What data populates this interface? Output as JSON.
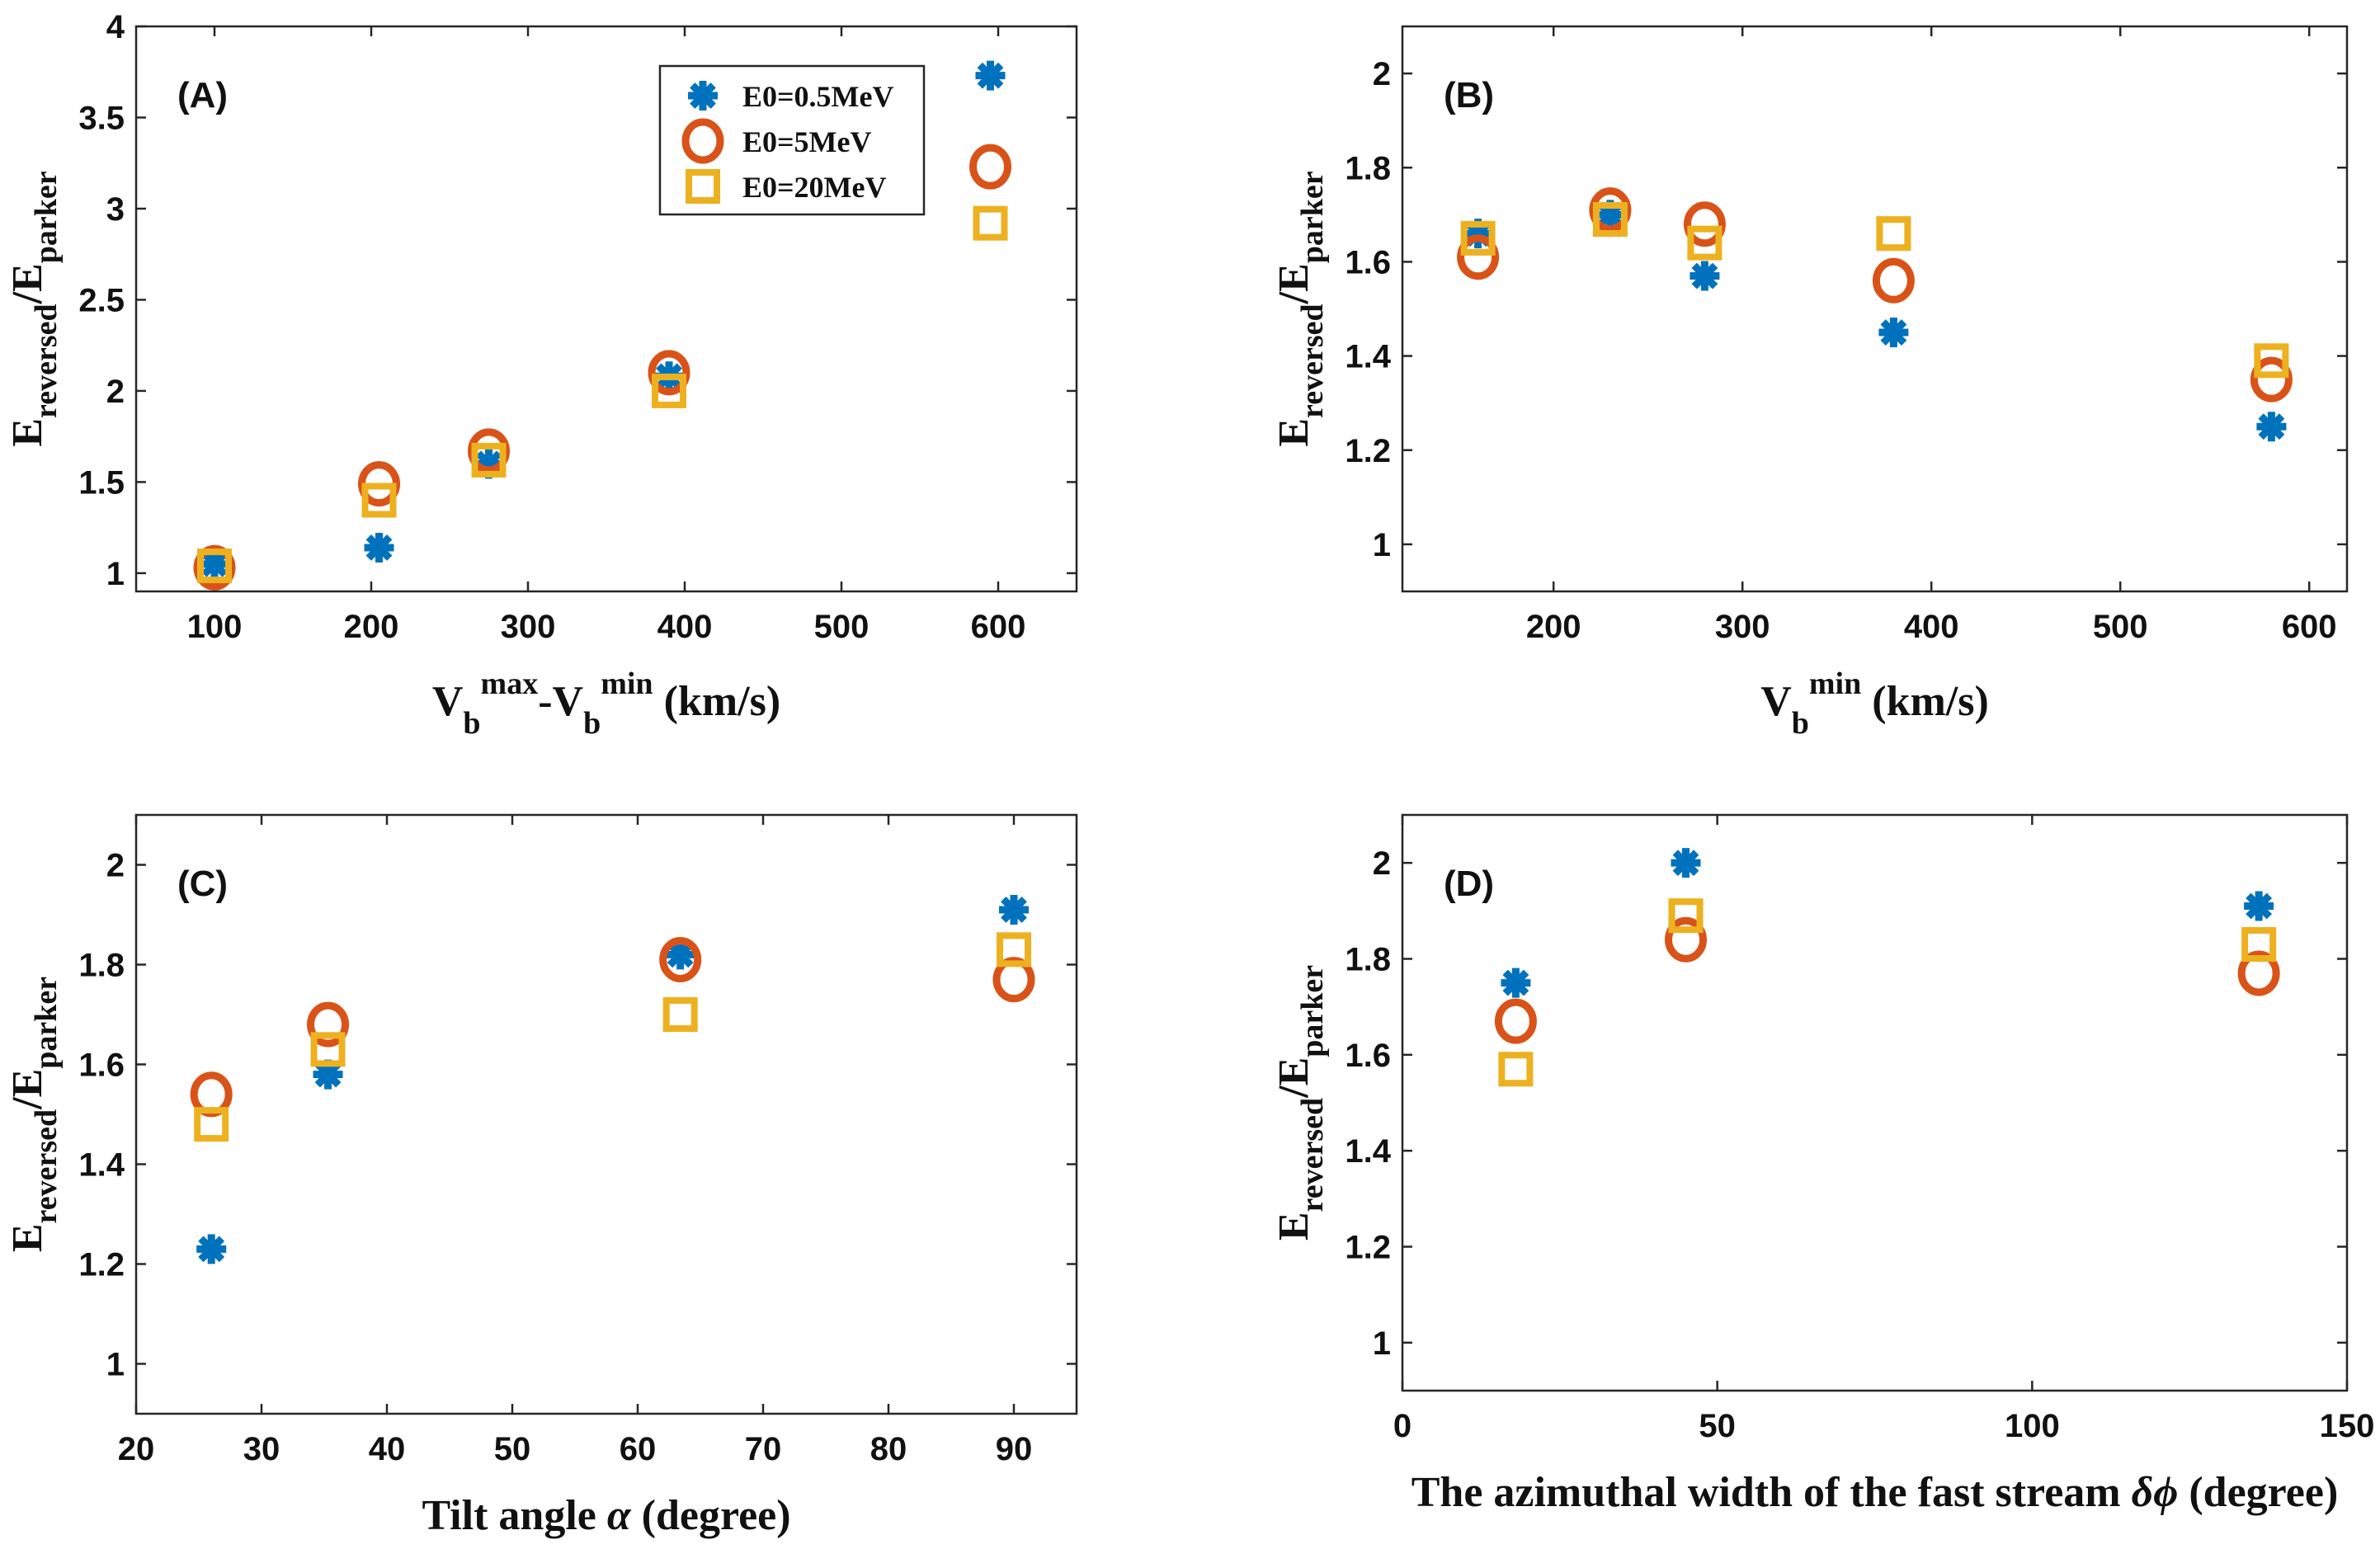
{
  "colors": {
    "series1": "#0072BD",
    "series2": "#D95319",
    "series3": "#EDB120",
    "axis": "#262626"
  },
  "legend": [
    "E0=0.5MeV",
    "E0=5MeV",
    "E0=20MeV"
  ],
  "ylabel": {
    "main": "E",
    "sub1": "reversed",
    "sep": "/E",
    "sub2": "parker"
  },
  "chart_data": [
    {
      "panel": "(A)",
      "type": "scatter",
      "xlim": [
        50,
        650
      ],
      "ylim": [
        0.9,
        4
      ],
      "xticks": [
        100,
        200,
        300,
        400,
        500,
        600
      ],
      "yticks": [
        1,
        1.5,
        2,
        2.5,
        3,
        3.5,
        4
      ],
      "yticklabels": [
        "1",
        "1.5",
        "2",
        "2.5",
        "3",
        "3.5",
        "4"
      ],
      "xlabel": {
        "parts": [
          [
            "V",
            "n"
          ],
          [
            "b",
            "sub"
          ],
          [
            "max",
            "sup"
          ],
          [
            "-V",
            "n"
          ],
          [
            "b",
            "sub"
          ],
          [
            "min",
            "sup"
          ],
          [
            " (km/s)",
            "n"
          ]
        ]
      },
      "legend_loc": "top-right",
      "series": [
        {
          "name": "E0=0.5MeV",
          "x": [
            100,
            205,
            275,
            390,
            595
          ],
          "y": [
            1.05,
            1.14,
            1.6,
            2.08,
            3.73
          ]
        },
        {
          "name": "E0=5MeV",
          "x": [
            100,
            205,
            275,
            390,
            595
          ],
          "y": [
            1.03,
            1.49,
            1.67,
            2.1,
            3.23
          ]
        },
        {
          "name": "E0=20MeV",
          "x": [
            100,
            205,
            275,
            390,
            595
          ],
          "y": [
            1.04,
            1.4,
            1.62,
            2.0,
            2.92
          ]
        }
      ]
    },
    {
      "panel": "(B)",
      "type": "scatter",
      "xlim": [
        120,
        620
      ],
      "ylim": [
        0.9,
        2.1
      ],
      "xticks": [
        200,
        300,
        400,
        500,
        600
      ],
      "yticks": [
        1,
        1.2,
        1.4,
        1.6,
        1.8,
        2
      ],
      "yticklabels": [
        "1",
        "1.2",
        "1.4",
        "1.6",
        "1.8",
        "2"
      ],
      "xlabel": {
        "parts": [
          [
            "V",
            "n"
          ],
          [
            "b",
            "sub"
          ],
          [
            "min",
            "sup"
          ],
          [
            " (km/s)",
            "n"
          ]
        ]
      },
      "series": [
        {
          "name": "E0=0.5MeV",
          "x": [
            160,
            230,
            280,
            380,
            580
          ],
          "y": [
            1.66,
            1.7,
            1.57,
            1.45,
            1.25
          ]
        },
        {
          "name": "E0=5MeV",
          "x": [
            160,
            230,
            280,
            380,
            580
          ],
          "y": [
            1.61,
            1.71,
            1.68,
            1.56,
            1.35
          ]
        },
        {
          "name": "E0=20MeV",
          "x": [
            160,
            230,
            280,
            380,
            580
          ],
          "y": [
            1.65,
            1.69,
            1.64,
            1.66,
            1.39
          ]
        }
      ]
    },
    {
      "panel": "(C)",
      "type": "scatter",
      "xlim": [
        20,
        95
      ],
      "ylim": [
        0.9,
        2.1
      ],
      "xticks": [
        20,
        30,
        40,
        50,
        60,
        70,
        80,
        90
      ],
      "yticks": [
        1,
        1.2,
        1.4,
        1.6,
        1.8,
        2
      ],
      "yticklabels": [
        "1",
        "1.2",
        "1.4",
        "1.6",
        "1.8",
        "2"
      ],
      "xlabel": {
        "parts": [
          [
            "Tilt angle ",
            "n"
          ],
          [
            "α",
            "i"
          ],
          [
            " (degree)",
            "n"
          ]
        ]
      },
      "series": [
        {
          "name": "E0=0.5MeV",
          "x": [
            26,
            35.3,
            63.4,
            90
          ],
          "y": [
            1.23,
            1.58,
            1.82,
            1.91
          ]
        },
        {
          "name": "E0=5MeV",
          "x": [
            26,
            35.3,
            63.4,
            90
          ],
          "y": [
            1.54,
            1.68,
            1.81,
            1.77
          ]
        },
        {
          "name": "E0=20MeV",
          "x": [
            26,
            35.3,
            63.4,
            90
          ],
          "y": [
            1.48,
            1.63,
            1.7,
            1.83
          ]
        }
      ]
    },
    {
      "panel": "(D)",
      "type": "scatter",
      "xlim": [
        0,
        150
      ],
      "ylim": [
        0.9,
        2.1
      ],
      "xticks": [
        0,
        50,
        100,
        150
      ],
      "yticks": [
        1,
        1.2,
        1.4,
        1.6,
        1.8,
        2
      ],
      "yticklabels": [
        "1",
        "1.2",
        "1.4",
        "1.6",
        "1.8",
        "2"
      ],
      "xlabel": {
        "parts": [
          [
            "The azimuthal width of the fast stream ",
            "n"
          ],
          [
            "δϕ",
            "i"
          ],
          [
            " (degree)",
            "n"
          ]
        ]
      },
      "series": [
        {
          "name": "E0=0.5MeV",
          "x": [
            18,
            45,
            136
          ],
          "y": [
            1.75,
            2.0,
            1.91
          ]
        },
        {
          "name": "E0=5MeV",
          "x": [
            18,
            45,
            136
          ],
          "y": [
            1.67,
            1.84,
            1.77
          ]
        },
        {
          "name": "E0=20MeV",
          "x": [
            18,
            45,
            136
          ],
          "y": [
            1.57,
            1.89,
            1.83
          ]
        }
      ]
    }
  ]
}
